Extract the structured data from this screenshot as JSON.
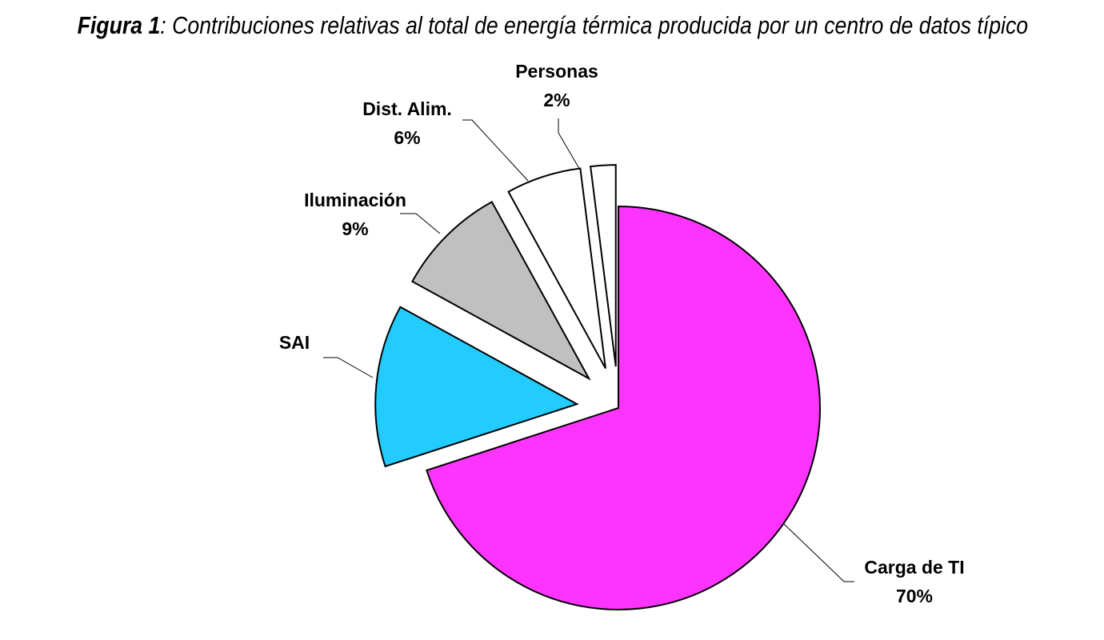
{
  "title": {
    "prefix": "Figura 1",
    "text": ": Contribuciones relativas al total de energía térmica producida por un centro de datos típico"
  },
  "chart_data": {
    "type": "pie",
    "title": "Figura 1: Contribuciones relativas al total de energía térmica producida por un centro de datos típico",
    "slices": [
      {
        "label": "Carga de TI",
        "value": 70,
        "value_label": "70%",
        "color": "#ff33ff",
        "exploded": false
      },
      {
        "label": "SAI",
        "value": 13,
        "value_label": "",
        "color": "#22ccff",
        "exploded": true
      },
      {
        "label": "Iluminación",
        "value": 9,
        "value_label": "9%",
        "color": "#c0c0c0",
        "exploded": true
      },
      {
        "label": "Dist. Alim.",
        "value": 6,
        "value_label": "6%",
        "color": "#ffffff",
        "exploded": true
      },
      {
        "label": "Personas",
        "value": 2,
        "value_label": "2%",
        "color": "#ffffff",
        "exploded": true
      }
    ],
    "start_angle_deg": 0,
    "direction": "clockwise",
    "legend": "none"
  }
}
